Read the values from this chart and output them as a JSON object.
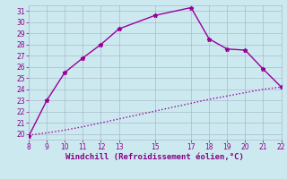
{
  "x_curve1": [
    8,
    9,
    10,
    11,
    12,
    13,
    15,
    17,
    18,
    19,
    20,
    21,
    22
  ],
  "y_curve1": [
    19.8,
    23.0,
    25.5,
    26.8,
    28.0,
    29.4,
    30.6,
    31.3,
    28.5,
    27.6,
    27.5,
    25.8,
    24.2
  ],
  "x_curve2": [
    8,
    9,
    10,
    11,
    12,
    13,
    14,
    15,
    16,
    17,
    18,
    19,
    20,
    21,
    22
  ],
  "y_curve2": [
    19.9,
    20.1,
    20.35,
    20.65,
    21.0,
    21.35,
    21.7,
    22.05,
    22.4,
    22.75,
    23.1,
    23.4,
    23.7,
    24.0,
    24.2
  ],
  "color": "#990099",
  "bg_color": "#cce9f0",
  "grid_color": "#aabbcc",
  "xlabel": "Windchill (Refroidissement éolien,°C)",
  "xlim": [
    8,
    22
  ],
  "ylim": [
    19.5,
    31.5
  ],
  "xticks": [
    8,
    9,
    10,
    11,
    12,
    13,
    15,
    17,
    18,
    19,
    20,
    21,
    22
  ],
  "xtick_labels": [
    "8",
    "9",
    "10",
    "11",
    "12",
    "13",
    "15",
    "17",
    "18",
    "19",
    "20",
    "21",
    "22"
  ],
  "yticks": [
    20,
    21,
    22,
    23,
    24,
    25,
    26,
    27,
    28,
    29,
    30,
    31
  ],
  "xlabel_color": "#880088",
  "tick_color": "#880088",
  "marker": "*",
  "markersize": 3.5,
  "linewidth": 1.0,
  "tick_fontsize": 5.5,
  "xlabel_fontsize": 6.5
}
